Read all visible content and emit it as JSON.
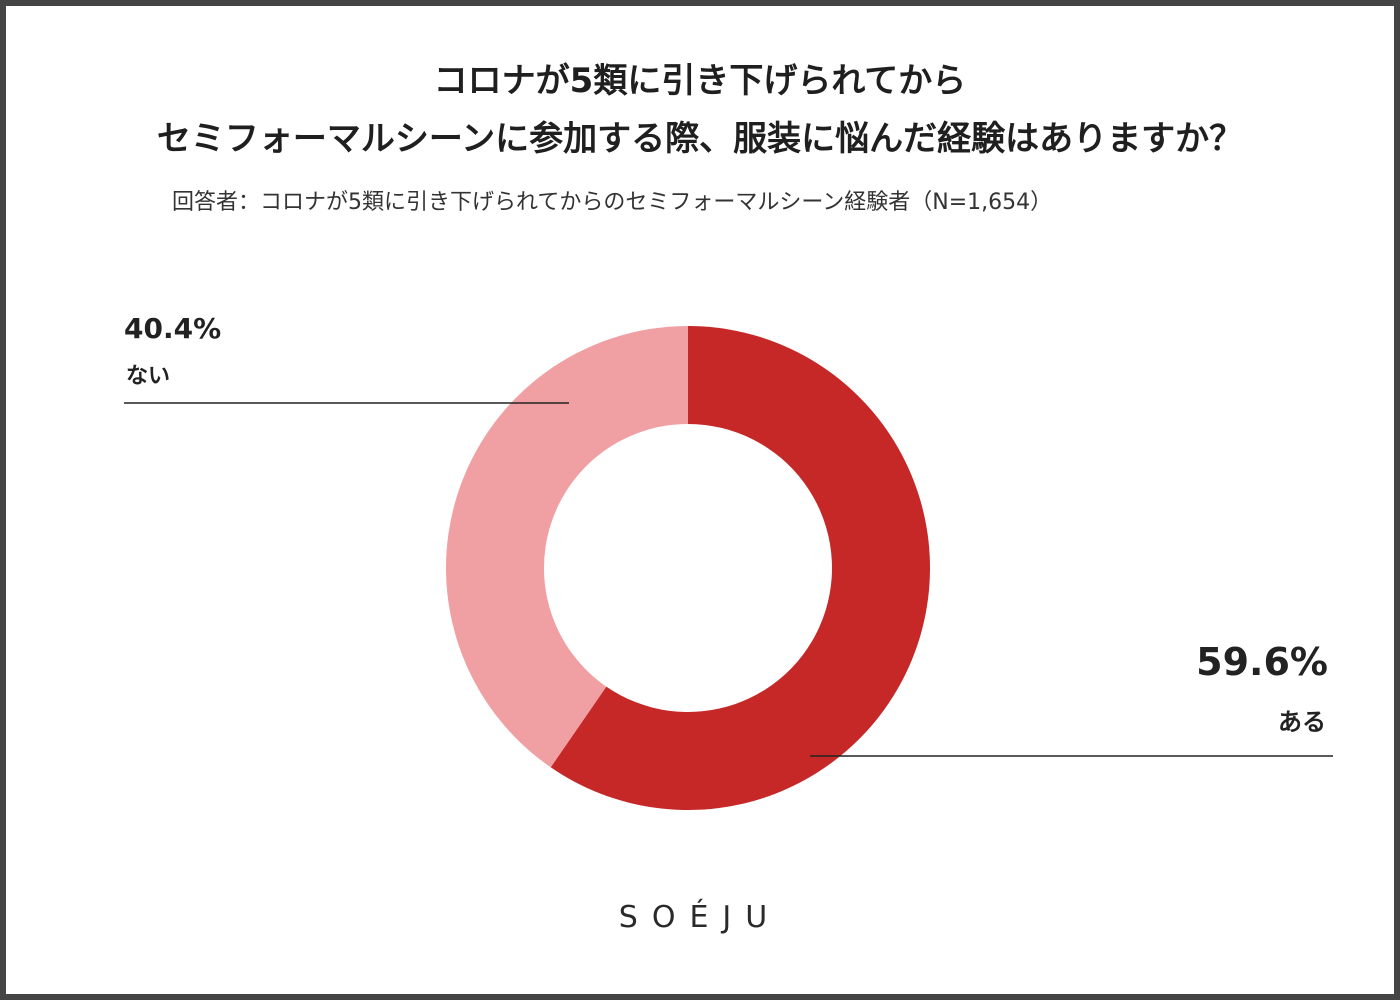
{
  "chart_data": {
    "type": "pie",
    "title": "コロナが5類に引き下げられてから\nセミフォーマルシーンに参加する際、服装に悩んだ経験はありますか？",
    "title_lines": [
      "コロナが5類に引き下げられてから",
      "セミフォーマルシーンに参加する際、服装に悩んだ経験はありますか？"
    ],
    "subtitle": "回答者：コロナが5類に引き下げられてからのセミフォーマルシーン経験者（N=1,654）",
    "categories": [
      "ある",
      "ない"
    ],
    "values": [
      59.6,
      40.4
    ],
    "value_labels": [
      "59.6%",
      "40.4%"
    ],
    "colors": [
      "#c62828",
      "#f0a0a3"
    ],
    "donut": true,
    "start_angle": "top, clockwise"
  },
  "brand": {
    "logo_text": "SOÉJU"
  }
}
